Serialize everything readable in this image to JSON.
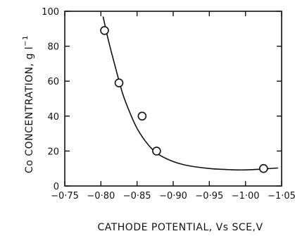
{
  "chart_data": {
    "type": "scatter",
    "title": "",
    "xlabel": "CATHODE POTENTIAL, Vs SCE,V",
    "ylabel": "Co CONCENTRATION, g l",
    "ylabel_superscript": "−1",
    "xlim": [
      -0.75,
      -1.05
    ],
    "ylim": [
      0,
      100
    ],
    "x_ticks": [
      -0.75,
      -0.8,
      -0.85,
      -0.9,
      -0.95,
      -1.0,
      -1.05
    ],
    "x_tick_labels": [
      "−0·75",
      "−0·80",
      "−0·85",
      "−0·90",
      "−0·95",
      "−1·00",
      "−1·05"
    ],
    "y_ticks": [
      0,
      20,
      40,
      60,
      80,
      100
    ],
    "y_tick_labels": [
      "0",
      "20",
      "40",
      "60",
      "80",
      "100"
    ],
    "grid": false,
    "series": [
      {
        "points": [
          {
            "x": -0.805,
            "y": 89
          },
          {
            "x": -0.825,
            "y": 59
          },
          {
            "x": -0.857,
            "y": 40
          },
          {
            "x": -0.877,
            "y": 20
          },
          {
            "x": -1.025,
            "y": 10
          }
        ]
      }
    ],
    "fit_curve": [
      {
        "x": -0.803,
        "y": 97
      },
      {
        "x": -0.81,
        "y": 84
      },
      {
        "x": -0.82,
        "y": 68
      },
      {
        "x": -0.83,
        "y": 53
      },
      {
        "x": -0.84,
        "y": 42
      },
      {
        "x": -0.85,
        "y": 33
      },
      {
        "x": -0.86,
        "y": 26.5
      },
      {
        "x": -0.87,
        "y": 21.5
      },
      {
        "x": -0.88,
        "y": 18
      },
      {
        "x": -0.9,
        "y": 14
      },
      {
        "x": -0.92,
        "y": 11.7
      },
      {
        "x": -0.95,
        "y": 10
      },
      {
        "x": -0.98,
        "y": 9.3
      },
      {
        "x": -1.0,
        "y": 9.2
      },
      {
        "x": -1.02,
        "y": 9.6
      },
      {
        "x": -1.045,
        "y": 10.3
      }
    ]
  }
}
